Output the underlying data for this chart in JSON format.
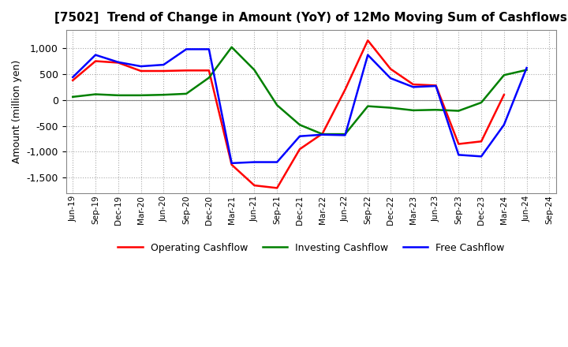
{
  "title": "[7502]  Trend of Change in Amount (YoY) of 12Mo Moving Sum of Cashflows",
  "ylabel": "Amount (million yen)",
  "x_labels": [
    "Jun-19",
    "Sep-19",
    "Dec-19",
    "Mar-20",
    "Jun-20",
    "Sep-20",
    "Dec-20",
    "Mar-21",
    "Jun-21",
    "Sep-21",
    "Dec-21",
    "Mar-22",
    "Jun-22",
    "Sep-22",
    "Dec-22",
    "Mar-23",
    "Jun-23",
    "Sep-23",
    "Dec-23",
    "Mar-24",
    "Jun-24",
    "Sep-24"
  ],
  "operating": [
    380,
    750,
    720,
    560,
    560,
    570,
    570,
    -1250,
    -1650,
    -1700,
    -950,
    -650,
    200,
    1150,
    600,
    300,
    280,
    -850,
    -800,
    100,
    null,
    null
  ],
  "investing": [
    60,
    110,
    90,
    90,
    100,
    120,
    430,
    1020,
    580,
    -100,
    -480,
    -660,
    -660,
    -120,
    -150,
    -200,
    -190,
    -210,
    -50,
    480,
    580,
    null
  ],
  "free": [
    440,
    870,
    730,
    650,
    680,
    980,
    980,
    -1220,
    -1200,
    -1200,
    -700,
    -670,
    -680,
    870,
    420,
    250,
    270,
    -1060,
    -1090,
    -480,
    620,
    null
  ],
  "operating_color": "#ff0000",
  "investing_color": "#008000",
  "free_color": "#0000ff",
  "ylim": [
    -1800,
    1350
  ],
  "yticks": [
    -1500,
    -1000,
    -500,
    0,
    500,
    1000
  ],
  "background_color": "#ffffff",
  "grid_color": "#aaaaaa"
}
